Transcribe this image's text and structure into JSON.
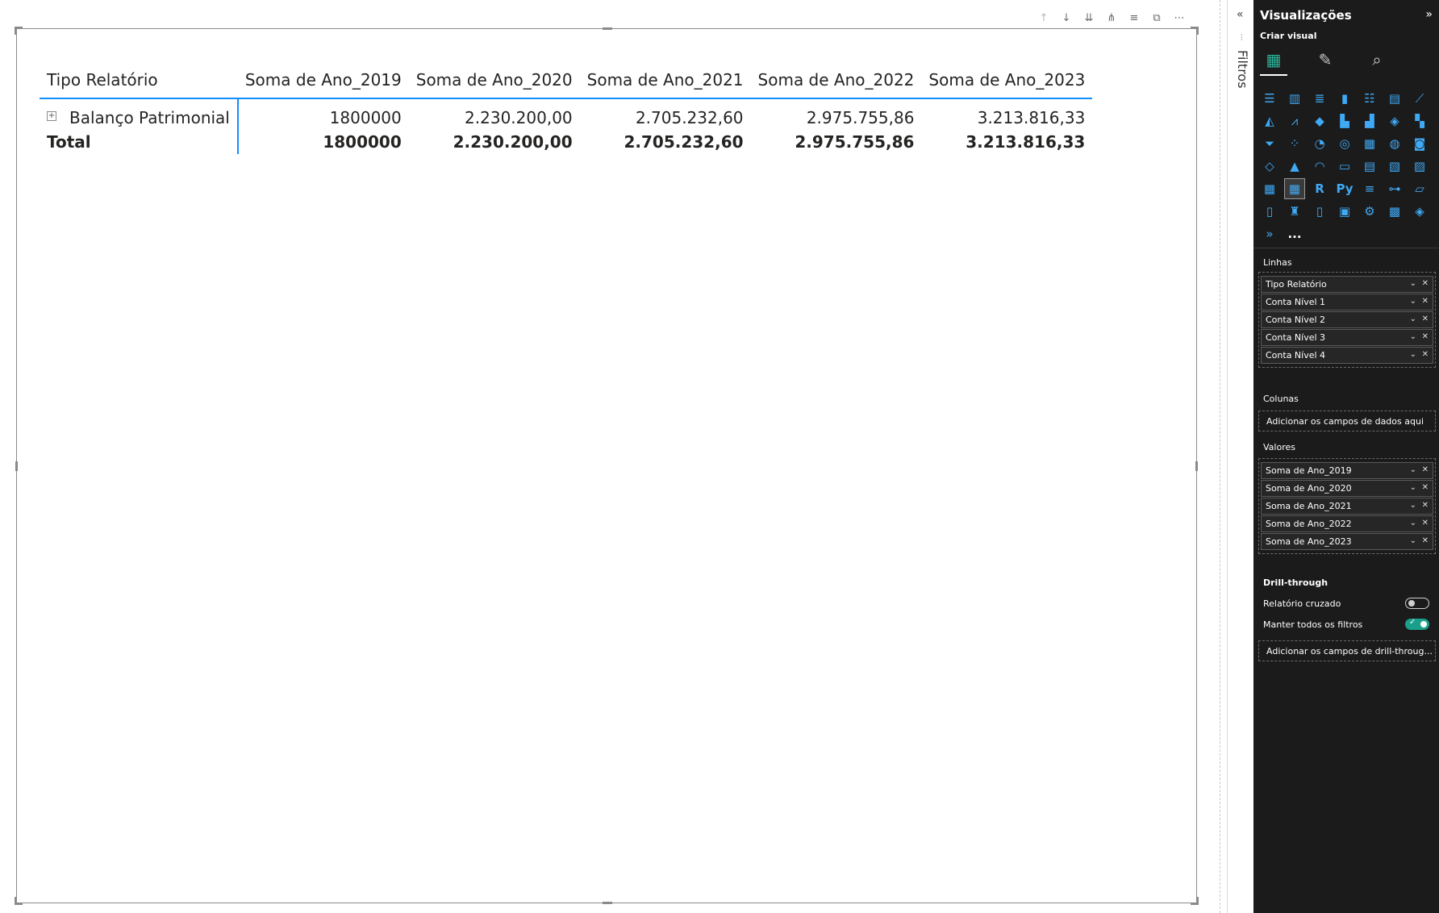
{
  "matrix": {
    "columns": [
      "Tipo Relatório",
      "Soma de Ano_2019",
      "Soma de Ano_2020",
      "Soma de Ano_2021",
      "Soma de Ano_2022",
      "Soma de Ano_2023"
    ],
    "rows": [
      {
        "label": "Balanço Patrimonial",
        "expand_symbol": "+",
        "values": [
          "1800000",
          "2.230.200,00",
          "2.705.232,60",
          "2.975.755,86",
          "3.213.816,33"
        ]
      }
    ],
    "total": {
      "label": "Total",
      "values": [
        "1800000",
        "2.230.200,00",
        "2.705.232,60",
        "2.975.755,86",
        "3.213.816,33"
      ]
    }
  },
  "visual_header_icons": [
    "arrow-up-icon",
    "arrow-down-icon",
    "double-arrow-down-icon",
    "expand-hierarchy-icon",
    "filter-icon",
    "focus-mode-icon",
    "more-options-icon"
  ],
  "filters": {
    "label": "Filtros",
    "collapse_glyph": "«"
  },
  "visualizations": {
    "title": "Visualizações",
    "expand_glyph": "»",
    "subtitle": "Criar visual",
    "linhas_label": "Linhas",
    "linhas": [
      "Tipo Relatório",
      "Conta Nível 1",
      "Conta Nível 2",
      "Conta Nível 3",
      "Conta Nível 4"
    ],
    "colunas_label": "Colunas",
    "colunas_placeholder": "Adicionar os campos de dados aqui",
    "valores_label": "Valores",
    "valores": [
      "Soma de Ano_2019",
      "Soma de Ano_2020",
      "Soma de Ano_2021",
      "Soma de Ano_2022",
      "Soma de Ano_2023"
    ],
    "drillthrough_label": "Drill-through",
    "cross_report_label": "Relatório cruzado",
    "cross_report_on": false,
    "keep_filters_label": "Manter todos os filtros",
    "keep_filters_on": true,
    "drillthrough_placeholder": "Adicionar os campos de drill-throug...",
    "viz_r_label": "R",
    "viz_py_label": "Py",
    "viz_more_label": "..."
  },
  "colors": {
    "accent_blue": "#118dff",
    "pane_bg": "#1b1b1b",
    "toggle_on": "#1aa08a"
  }
}
